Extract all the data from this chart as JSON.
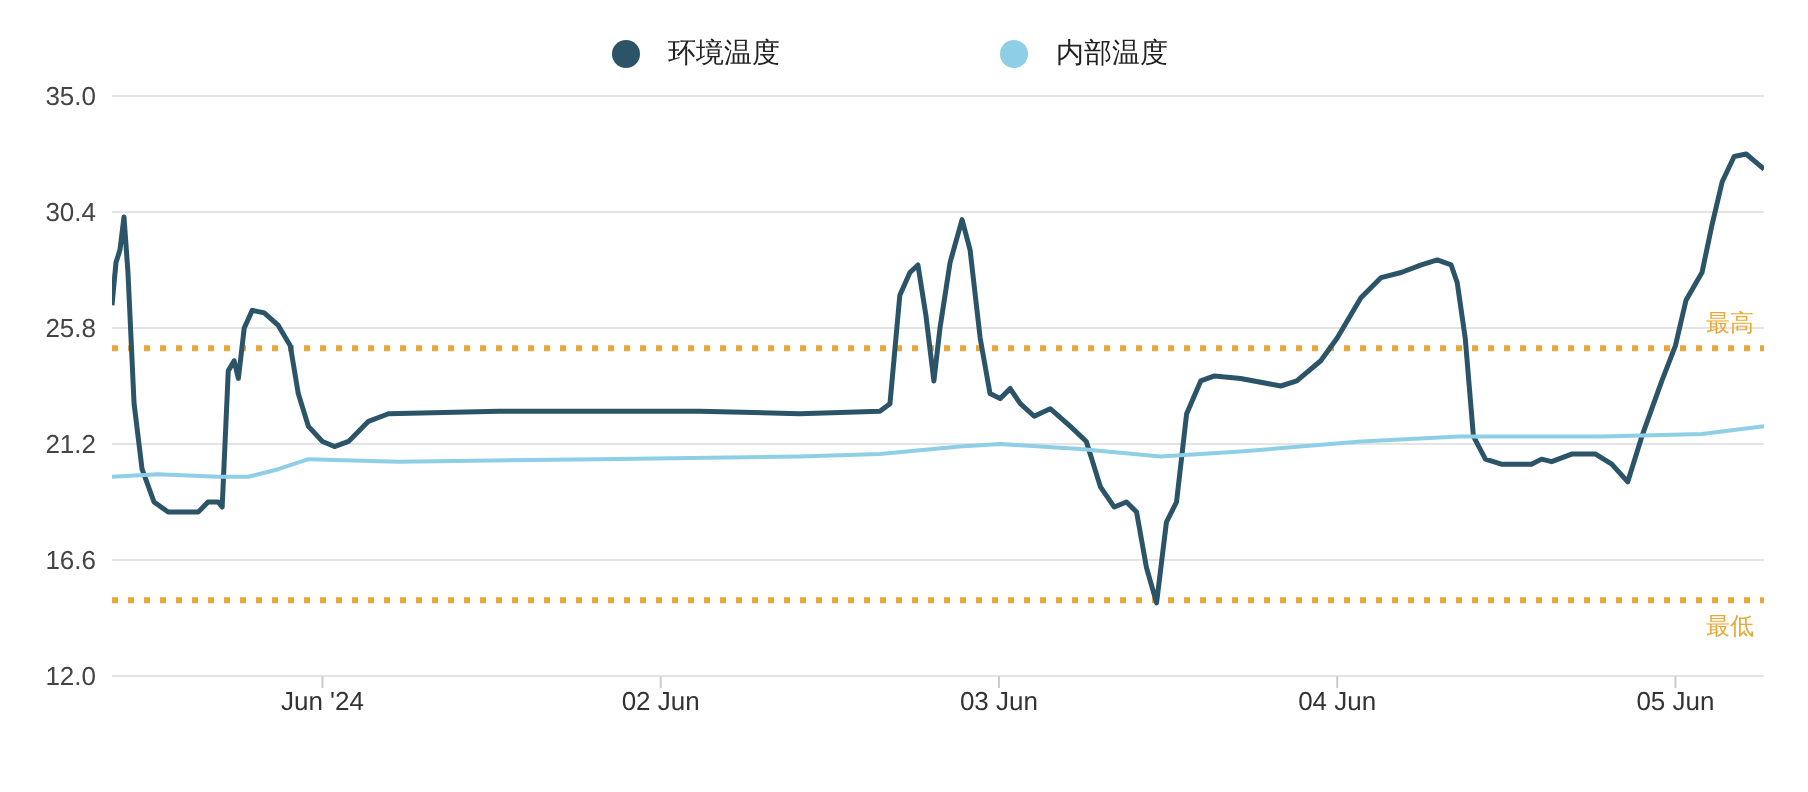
{
  "chart_data": {
    "type": "line",
    "xlim": [
      "2024-05-31T09:04",
      "2024-06-05T06:17"
    ],
    "xticks": [
      {
        "value": "2024-06-01",
        "label": "Jun '24"
      },
      {
        "value": "2024-06-02",
        "label": "02 Jun"
      },
      {
        "value": "2024-06-03",
        "label": "03 Jun"
      },
      {
        "value": "2024-06-04",
        "label": "04 Jun"
      },
      {
        "value": "2024-06-05",
        "label": "05 Jun"
      }
    ],
    "ylim": [
      12,
      35
    ],
    "yticks": [
      {
        "value": 12,
        "label": "12.0"
      },
      {
        "value": 16.6,
        "label": "16.6"
      },
      {
        "value": 21.2,
        "label": "21.2"
      },
      {
        "value": 25.8,
        "label": "25.8"
      },
      {
        "value": 30.4,
        "label": "30.4"
      },
      {
        "value": 35,
        "label": "35.0"
      }
    ],
    "grid": "y",
    "legend": "top",
    "marker": "none",
    "line_style": "solid",
    "ref_lines": [
      {
        "axis": "y",
        "value": 25,
        "label": "最高",
        "color": "#e8a838",
        "line_style": "dotted"
      },
      {
        "axis": "y",
        "value": 15,
        "label": "最低",
        "color": "#e8a838",
        "line_style": "dotted"
      }
    ],
    "series": [
      {
        "name": "环境温度",
        "color": "#2b5468",
        "x": [
          "2024-05-31T09:04",
          "2024-05-31T09:21",
          "2024-05-31T09:38",
          "2024-05-31T09:55",
          "2024-05-31T10:12",
          "2024-05-31T10:38",
          "2024-05-31T11:12",
          "2024-05-31T12:03",
          "2024-05-31T13:03",
          "2024-05-31T15:11",
          "2024-05-31T15:53",
          "2024-05-31T16:36",
          "2024-05-31T16:53",
          "2024-05-31T17:19",
          "2024-05-31T17:44",
          "2024-05-31T18:02",
          "2024-05-31T18:27",
          "2024-05-31T19:01",
          "2024-05-31T19:52",
          "2024-05-31T20:52",
          "2024-05-31T21:43",
          "2024-05-31T22:17",
          "2024-05-31T23:00",
          "2024-06-01T00:00",
          "2024-06-01T00:51",
          "2024-06-01T01:51",
          "2024-06-01T03:16",
          "2024-06-01T04:41",
          "2024-06-01T12:31",
          "2024-06-01T19:38",
          "2024-06-02T02:45",
          "2024-06-02T09:52",
          "2024-06-02T15:33",
          "2024-06-02T16:16",
          "2024-06-02T16:58",
          "2024-06-02T17:41",
          "2024-06-02T18:15",
          "2024-06-02T18:49",
          "2024-06-02T19:23",
          "2024-06-02T19:49",
          "2024-06-02T20:32",
          "2024-06-02T21:23",
          "2024-06-02T21:57",
          "2024-06-02T22:40",
          "2024-06-02T23:22",
          "2024-06-03T00:05",
          "2024-06-03T00:48",
          "2024-06-03T01:31",
          "2024-06-03T02:30",
          "2024-06-03T03:38",
          "2024-06-03T05:04",
          "2024-06-03T06:12",
          "2024-06-03T07:12",
          "2024-06-03T08:11",
          "2024-06-03T09:03",
          "2024-06-03T09:46",
          "2024-06-03T10:28",
          "2024-06-03T11:11",
          "2024-06-03T11:53",
          "2024-06-03T12:36",
          "2024-06-03T13:19",
          "2024-06-03T14:19",
          "2024-06-03T15:18",
          "2024-06-03T17:09",
          "2024-06-03T20:00",
          "2024-06-03T21:08",
          "2024-06-03T22:50",
          "2024-06-04T00:00",
          "2024-06-04T01:41",
          "2024-06-04T03:07",
          "2024-06-04T04:32",
          "2024-06-04T05:58",
          "2024-06-04T07:06",
          "2024-06-04T08:05",
          "2024-06-04T08:31",
          "2024-06-04T09:05",
          "2024-06-04T09:40",
          "2024-06-04T10:31",
          "2024-06-04T11:39",
          "2024-06-04T13:47",
          "2024-06-04T14:30",
          "2024-06-04T15:13",
          "2024-06-04T16:38",
          "2024-06-04T18:20",
          "2024-06-04T19:29",
          "2024-06-04T20:37",
          "2024-06-04T21:37",
          "2024-06-04T23:02",
          "2024-06-05T00:00",
          "2024-06-05T00:45",
          "2024-06-05T01:53",
          "2024-06-05T02:36",
          "2024-06-05T03:19",
          "2024-06-05T04:10",
          "2024-06-05T05:01",
          "2024-06-05T05:52",
          "2024-06-05T06:17"
        ],
        "values": [
          26.7,
          28.4,
          28.9,
          30.2,
          28.0,
          22.8,
          20.2,
          18.9,
          18.5,
          18.5,
          18.9,
          18.9,
          18.7,
          24.1,
          24.5,
          23.8,
          25.8,
          26.5,
          26.4,
          25.9,
          25.1,
          23.2,
          21.9,
          21.3,
          21.1,
          21.3,
          22.1,
          22.4,
          22.5,
          22.5,
          22.5,
          22.4,
          22.5,
          22.8,
          27.1,
          28.0,
          28.3,
          26.3,
          23.7,
          25.8,
          28.4,
          30.1,
          28.9,
          25.4,
          23.2,
          23.0,
          23.4,
          22.8,
          22.3,
          22.6,
          21.9,
          21.3,
          19.5,
          18.7,
          18.9,
          18.5,
          16.3,
          14.9,
          18.1,
          18.9,
          22.4,
          23.7,
          23.9,
          23.8,
          23.5,
          23.7,
          24.5,
          25.4,
          27.0,
          27.8,
          28.0,
          28.3,
          28.5,
          28.3,
          27.6,
          25.4,
          21.5,
          20.6,
          20.4,
          20.4,
          20.6,
          20.5,
          20.8,
          20.8,
          20.4,
          19.7,
          21.5,
          23.7,
          25.1,
          26.9,
          28.0,
          29.9,
          31.6,
          32.6,
          32.7,
          32.3,
          32.1
        ]
      },
      {
        "name": "内部温度",
        "color": "#8ecfe6",
        "x": [
          "2024-05-31T09:04",
          "2024-05-31T12:20",
          "2024-05-31T16:36",
          "2024-05-31T18:44",
          "2024-05-31T20:52",
          "2024-05-31T23:00",
          "2024-06-01T05:24",
          "2024-06-01T19:38",
          "2024-06-02T09:52",
          "2024-06-02T15:33",
          "2024-06-02T21:14",
          "2024-06-03T00:05",
          "2024-06-03T05:46",
          "2024-06-03T11:28",
          "2024-06-03T17:09",
          "2024-06-04T01:41",
          "2024-06-04T08:40",
          "2024-06-04T18:46",
          "2024-06-05T01:53",
          "2024-06-05T06:17"
        ],
        "values": [
          19.9,
          20.0,
          19.9,
          19.9,
          20.2,
          20.6,
          20.5,
          20.6,
          20.7,
          20.8,
          21.1,
          21.2,
          21.0,
          20.7,
          20.9,
          21.3,
          21.5,
          21.5,
          21.6,
          21.9
        ]
      }
    ]
  }
}
